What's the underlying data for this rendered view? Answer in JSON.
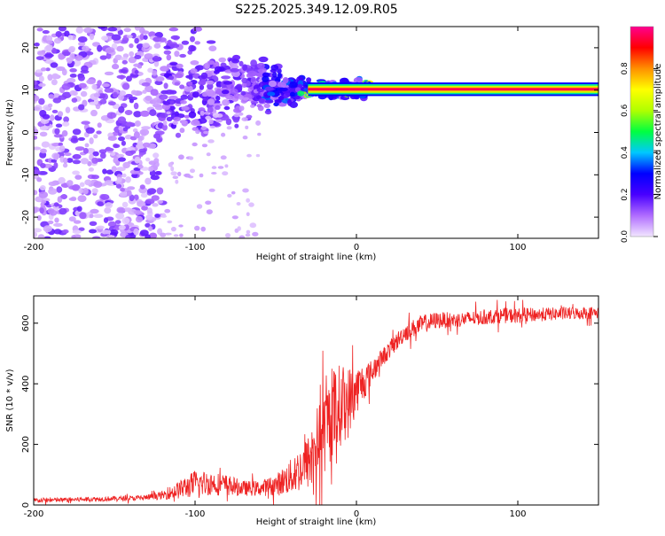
{
  "title": "S225.2025.349.12.09.R05",
  "chart_data": [
    {
      "type": "heatmap",
      "name": "spectrogram",
      "xlabel": "Height of straight line (km)",
      "ylabel": "Frequency (Hz)",
      "xlim": [
        -200,
        150
      ],
      "ylim": [
        -25,
        25
      ],
      "xticks": [
        -200,
        -100,
        0,
        100
      ],
      "yticks": [
        20,
        10,
        0,
        -10,
        -20
      ],
      "features": {
        "noise_region_x": [
          -200,
          -120
        ],
        "transition_region_x": [
          -120,
          -30
        ],
        "signal_frequency_hz": 10.2,
        "band_start_x": -30,
        "band_peak_amplitude": 0.95
      },
      "colorbar": {
        "label": "Normalized spectral amplitude",
        "ticks": [
          0.0,
          0.2,
          0.4,
          0.6,
          0.8
        ],
        "range": [
          0,
          1
        ],
        "colors": [
          "#f2e6ff",
          "#b06cff",
          "#4800ff",
          "#0000ff",
          "#00c8ff",
          "#00ff40",
          "#b0ff00",
          "#ffff00",
          "#ff9000",
          "#ff0000",
          "#ff0090"
        ]
      }
    },
    {
      "type": "line",
      "name": "snr",
      "xlabel": "Height of straight line (km)",
      "ylabel": "SNR (10 * v/v)",
      "xlim": [
        -200,
        150
      ],
      "ylim": [
        0,
        690
      ],
      "xticks": [
        -200,
        -100,
        0,
        100
      ],
      "yticks": [
        0,
        200,
        400,
        600
      ],
      "color": "#ee2222",
      "series": [
        {
          "name": "SNR",
          "x": [
            -200,
            -180,
            -160,
            -140,
            -130,
            -120,
            -110,
            -100,
            -90,
            -80,
            -70,
            -60,
            -50,
            -40,
            -30,
            -25,
            -20,
            -15,
            -10,
            -5,
            0,
            5,
            10,
            15,
            20,
            25,
            30,
            40,
            50,
            60,
            70,
            80,
            90,
            100,
            120,
            150
          ],
          "y": [
            15,
            17,
            20,
            22,
            25,
            32,
            50,
            70,
            72,
            65,
            55,
            55,
            65,
            95,
            140,
            200,
            240,
            300,
            330,
            340,
            380,
            410,
            440,
            480,
            510,
            540,
            570,
            595,
            610,
            610,
            615,
            620,
            625,
            625,
            630,
            635
          ],
          "noise_amplitude": [
            8,
            8,
            8,
            8,
            9,
            14,
            30,
            45,
            40,
            35,
            25,
            25,
            35,
            60,
            90,
            120,
            140,
            150,
            140,
            120,
            80,
            60,
            40,
            30,
            30,
            30,
            30,
            30,
            28,
            25,
            25,
            25,
            25,
            25,
            22,
            20
          ]
        }
      ]
    }
  ]
}
